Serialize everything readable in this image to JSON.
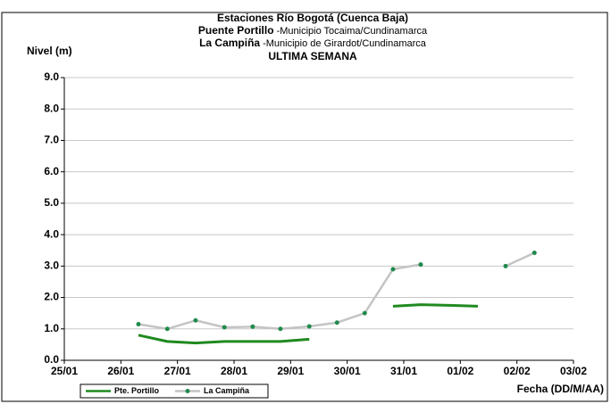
{
  "chart_data": {
    "type": "line",
    "title": "Estaciones Río Bogotá (Cuenca Baja)",
    "subtitle_lines": [
      {
        "bold": "Puente Portillo",
        "text": "-Municipio Tocaima/Cundinamarca"
      },
      {
        "bold": "La Campiña",
        "text": "-Municipio de Girardot/Cundinamarca"
      }
    ],
    "period": "ULTIMA SEMANA",
    "y_label": "Nivel (m)",
    "x_label": "Fecha (DD/M/AA)",
    "x": [
      1.31,
      1.82,
      2.32,
      2.83,
      3.33,
      3.82,
      4.33,
      4.82,
      5.31,
      5.81,
      6.3,
      6.81,
      7.31,
      7.8,
      8.31
    ],
    "series": [
      {
        "name": "Pte. Portillo",
        "color": "#1f8a1f",
        "values": [
          0.8,
          0.6,
          0.55,
          0.6,
          0.6,
          0.6,
          0.67,
          null,
          null,
          1.72,
          1.77,
          1.75,
          1.72,
          null,
          null
        ]
      },
      {
        "name": "La Campiña",
        "color": "#c4c4c4",
        "marker_color": "#1f8a4c",
        "values": [
          1.15,
          1.0,
          1.27,
          1.05,
          1.07,
          1.0,
          1.08,
          1.2,
          1.5,
          2.9,
          3.05,
          null,
          null,
          3.0,
          3.42
        ]
      }
    ],
    "xlim": [
      0,
      9
    ],
    "xticks": [
      {
        "value": 0,
        "label": "25/01"
      },
      {
        "value": 1,
        "label": "26/01"
      },
      {
        "value": 2,
        "label": "27/01"
      },
      {
        "value": 3,
        "label": "28/01"
      },
      {
        "value": 4,
        "label": "29/01"
      },
      {
        "value": 5,
        "label": "30/01"
      },
      {
        "value": 6,
        "label": "31/01"
      },
      {
        "value": 7,
        "label": "01/02"
      },
      {
        "value": 8,
        "label": "02/02"
      },
      {
        "value": 9,
        "label": "03/02"
      }
    ],
    "ylim": [
      0,
      9
    ],
    "yticks": [
      {
        "value": 0,
        "label": "0.0"
      },
      {
        "value": 1,
        "label": "1.0"
      },
      {
        "value": 2,
        "label": "2.0"
      },
      {
        "value": 3,
        "label": "3.0"
      },
      {
        "value": 4,
        "label": "4.0"
      },
      {
        "value": 5,
        "label": "5.0"
      },
      {
        "value": 6,
        "label": "6.0"
      },
      {
        "value": 7,
        "label": "7.0"
      },
      {
        "value": 8,
        "label": "8.0"
      },
      {
        "value": 9,
        "label": "9.0"
      }
    ],
    "grid": true
  }
}
